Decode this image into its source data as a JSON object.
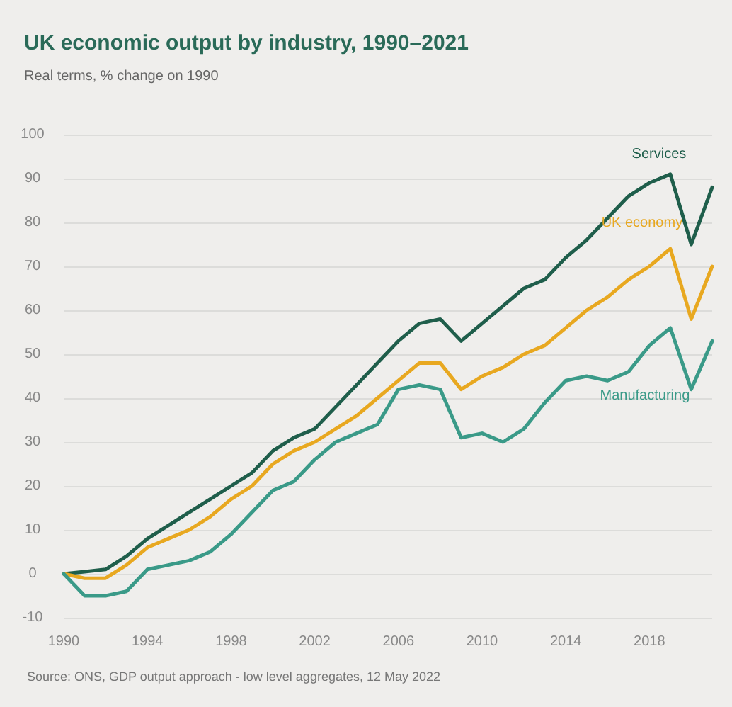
{
  "chart_data": {
    "type": "line",
    "title": "UK economic output by industry, 1990–2021",
    "subtitle": "Real terms, % change on 1990",
    "x": [
      1990,
      1991,
      1992,
      1993,
      1994,
      1995,
      1996,
      1997,
      1998,
      1999,
      2000,
      2001,
      2002,
      2003,
      2004,
      2005,
      2006,
      2007,
      2008,
      2009,
      2010,
      2011,
      2012,
      2013,
      2014,
      2015,
      2016,
      2017,
      2018,
      2019,
      2020,
      2021
    ],
    "series": [
      {
        "name": "Services",
        "color": "#1f5e4b",
        "values": [
          0,
          0.5,
          1,
          4,
          8,
          11,
          14,
          17,
          20,
          23,
          28,
          31,
          33,
          38,
          43,
          48,
          53,
          57,
          58,
          53,
          57,
          61,
          65,
          67,
          72,
          76,
          81,
          86,
          89,
          91,
          75,
          88
        ]
      },
      {
        "name": "UK economy",
        "color": "#e8a820",
        "values": [
          0,
          -1,
          -1,
          2,
          6,
          8,
          10,
          13,
          17,
          20,
          25,
          28,
          30,
          33,
          36,
          40,
          44,
          48,
          48,
          42,
          45,
          47,
          50,
          52,
          56,
          60,
          63,
          67,
          70,
          74,
          58,
          70
        ]
      },
      {
        "name": "Manufacturing",
        "color": "#3a9a88",
        "values": [
          0,
          -5,
          -5,
          -4,
          1,
          2,
          3,
          5,
          9,
          14,
          19,
          21,
          26,
          30,
          32,
          34,
          42,
          43,
          42,
          31,
          32,
          30,
          33,
          39,
          44,
          45,
          44,
          46,
          52,
          56,
          42,
          53
        ]
      }
    ],
    "xlim": [
      1990,
      2021
    ],
    "xticks": [
      1990,
      1994,
      1998,
      2002,
      2006,
      2010,
      2014,
      2018
    ],
    "ylim": [
      -10,
      100
    ],
    "yticks": [
      -10,
      0,
      10,
      20,
      30,
      40,
      50,
      60,
      70,
      80,
      90,
      100
    ],
    "grid": "y",
    "legend": false,
    "marker": "none",
    "line_style": "solid",
    "annotations": [
      "Source: ONS, GDP output approach - low level aggregates, 12 May 2022"
    ]
  }
}
